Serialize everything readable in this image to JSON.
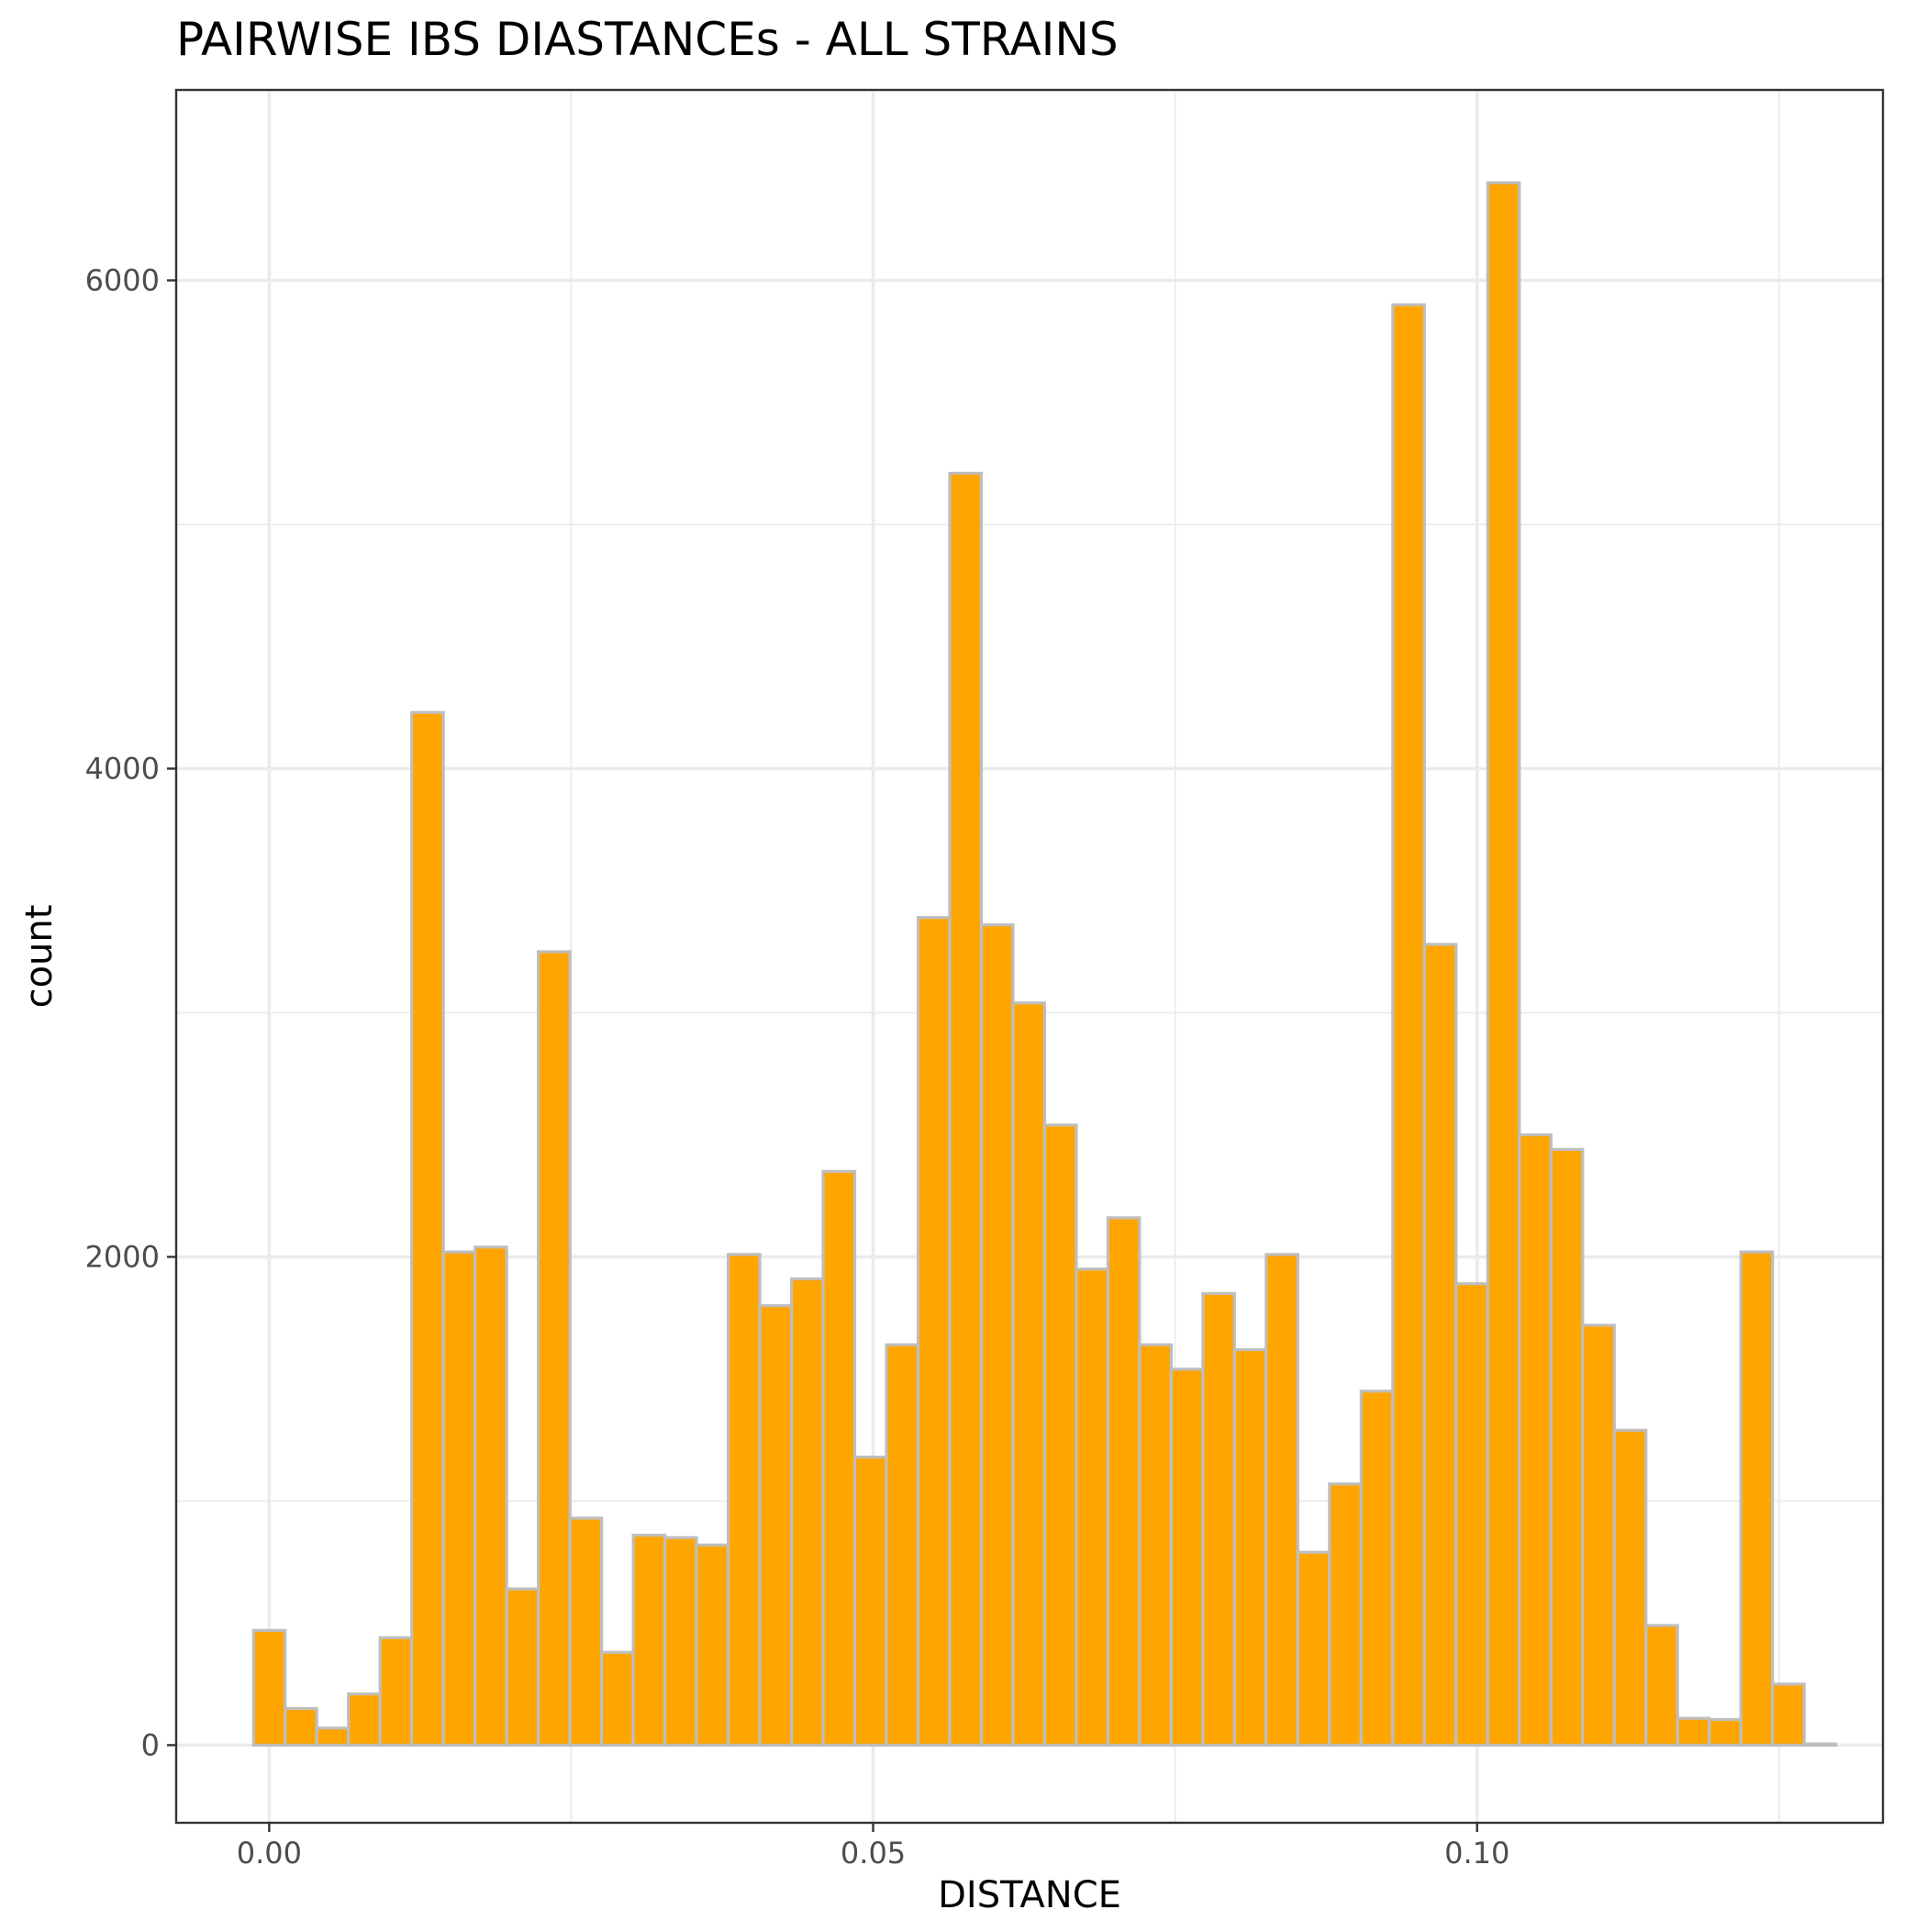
{
  "chart_data": {
    "type": "bar",
    "subtype": "histogram",
    "title": "PAIRWISE IBS DIASTANCEs - ALL STRAINS",
    "xlabel": "DISTANCE",
    "ylabel": "count",
    "xlim": [
      -0.0077,
      0.1336
    ],
    "ylim": [
      -318,
      6780
    ],
    "x_ticks": [
      0.0,
      0.05,
      0.1
    ],
    "x_tick_labels": [
      "0.00",
      "0.05",
      "0.10"
    ],
    "x_minor_ticks": [
      0.025,
      0.075,
      0.125
    ],
    "y_ticks": [
      0,
      2000,
      4000,
      6000
    ],
    "y_tick_labels": [
      "0",
      "2000",
      "4000",
      "6000"
    ],
    "y_minor_ticks": [
      1000,
      3000,
      5000
    ],
    "grid": true,
    "legend": "none",
    "colors": {
      "fill": "#ffa500",
      "outline": "#bebebe",
      "background": "#ffffff"
    },
    "bins": {
      "start": -0.0013,
      "width": 0.00262,
      "counts": [
        470,
        150,
        70,
        210,
        440,
        4230,
        2020,
        2040,
        640,
        3250,
        930,
        380,
        860,
        850,
        820,
        2010,
        1800,
        1910,
        2350,
        1180,
        1640,
        3390,
        5210,
        3360,
        3040,
        2540,
        1950,
        2160,
        1640,
        1540,
        1850,
        1620,
        2010,
        790,
        1070,
        1450,
        5900,
        3280,
        1890,
        6400,
        2500,
        2440,
        1720,
        1290,
        490,
        110,
        105,
        2020,
        250,
        5
      ]
    }
  }
}
